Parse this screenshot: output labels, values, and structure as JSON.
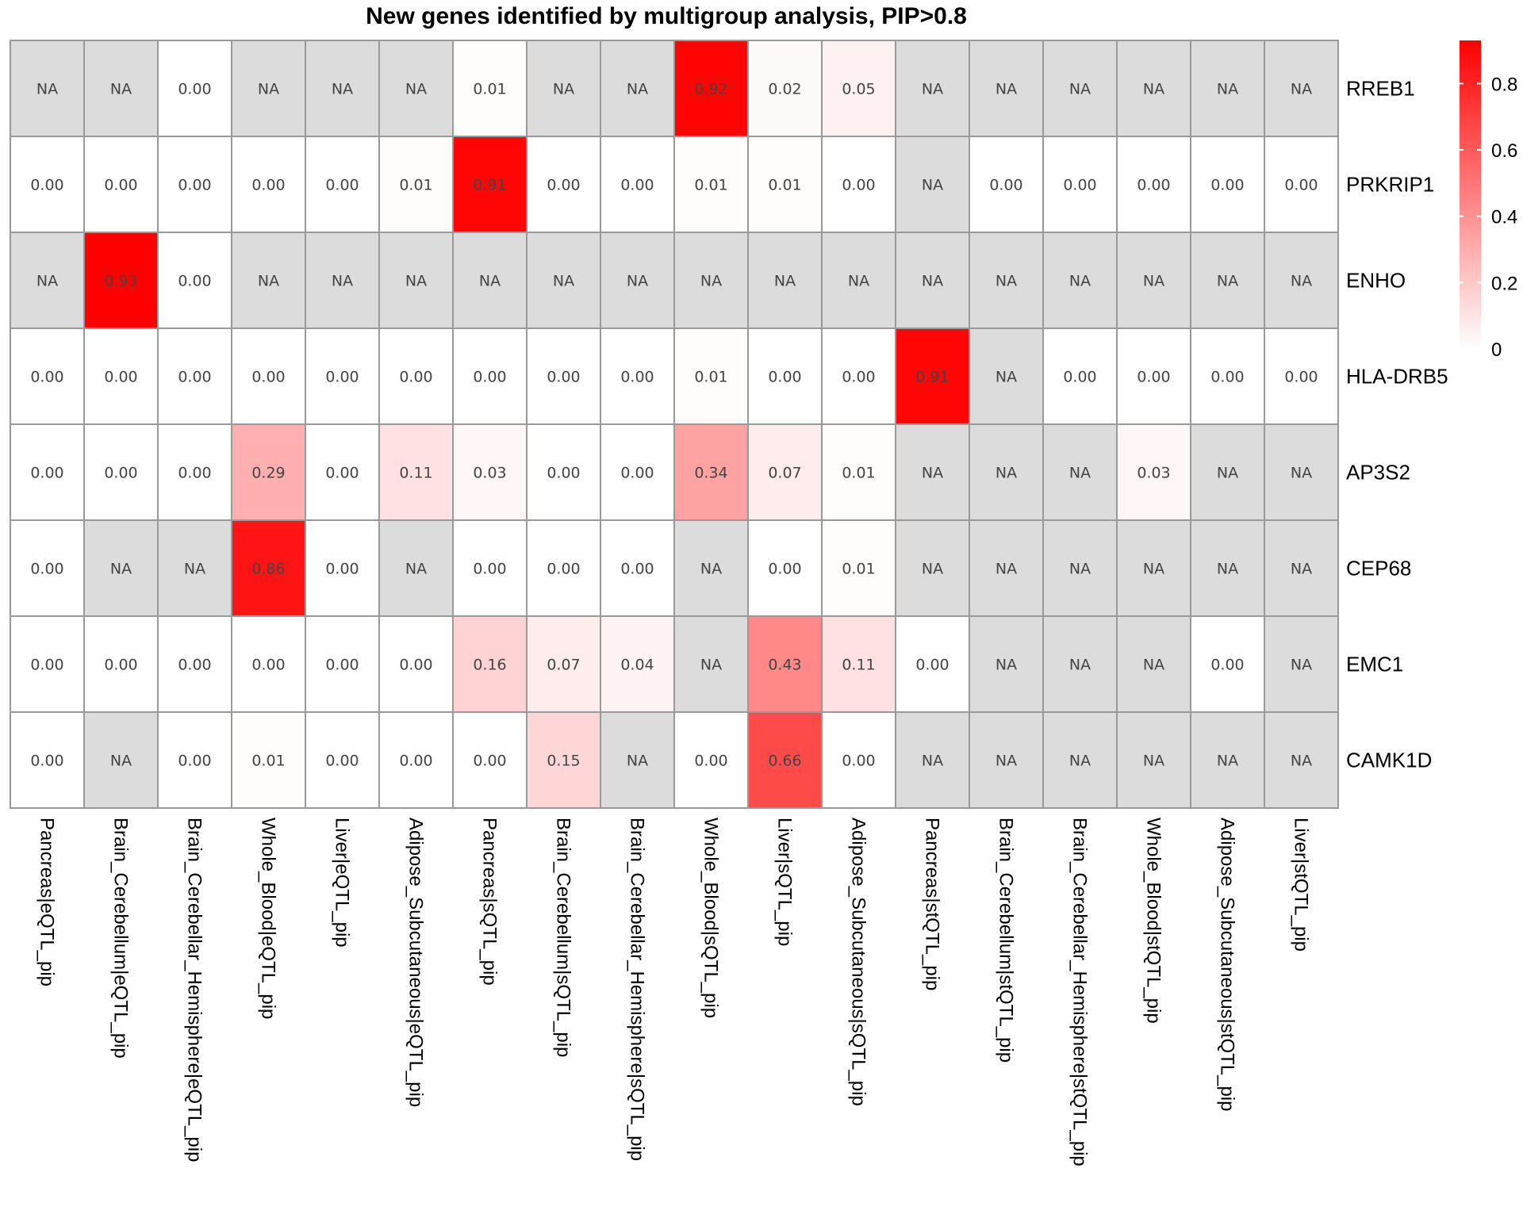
{
  "chart_data": {
    "type": "heatmap",
    "title": "New genes identified by multigroup analysis, PIP>0.8",
    "rows": [
      "RREB1",
      "PRKRIP1",
      "ENHO",
      "HLA-DRB5",
      "AP3S2",
      "CEP68",
      "EMC1",
      "CAMK1D"
    ],
    "columns": [
      "Pancreas|eQTL_pip",
      "Brain_Cerebellum|eQTL_pip",
      "Brain_Cerebellar_Hemisphere|eQTL_pip",
      "Whole_Blood|eQTL_pip",
      "Liver|eQTL_pip",
      "Adipose_Subcutaneous|eQTL_pip",
      "Pancreas|sQTL_pip",
      "Brain_Cerebellum|sQTL_pip",
      "Brain_Cerebellar_Hemisphere|sQTL_pip",
      "Whole_Blood|sQTL_pip",
      "Liver|sQTL_pip",
      "Adipose_Subcutaneous|sQTL_pip",
      "Pancreas|stQTL_pip",
      "Brain_Cerebellum|stQTL_pip",
      "Brain_Cerebellar_Hemisphere|stQTL_pip",
      "Whole_Blood|stQTL_pip",
      "Adipose_Subcutaneous|stQTL_pip",
      "Liver|stQTL_pip"
    ],
    "values": [
      [
        null,
        null,
        0.0,
        null,
        null,
        null,
        0.01,
        null,
        null,
        0.92,
        0.02,
        0.05,
        null,
        null,
        null,
        null,
        null,
        null
      ],
      [
        0.0,
        0.0,
        0.0,
        0.0,
        0.0,
        0.01,
        0.91,
        0.0,
        0.0,
        0.01,
        0.01,
        0.0,
        null,
        0.0,
        0.0,
        0.0,
        0.0,
        0.0
      ],
      [
        null,
        0.93,
        0.0,
        null,
        null,
        null,
        null,
        null,
        null,
        null,
        null,
        null,
        null,
        null,
        null,
        null,
        null,
        null
      ],
      [
        0.0,
        0.0,
        0.0,
        0.0,
        0.0,
        0.0,
        0.0,
        0.0,
        0.0,
        0.01,
        0.0,
        0.0,
        0.91,
        null,
        0.0,
        0.0,
        0.0,
        0.0
      ],
      [
        0.0,
        0.0,
        0.0,
        0.29,
        0.0,
        0.11,
        0.03,
        0.0,
        0.0,
        0.34,
        0.07,
        0.01,
        null,
        null,
        null,
        0.03,
        null,
        null
      ],
      [
        0.0,
        null,
        null,
        0.86,
        0.0,
        null,
        0.0,
        0.0,
        0.0,
        null,
        0.0,
        0.01,
        null,
        null,
        null,
        null,
        null,
        null
      ],
      [
        0.0,
        0.0,
        0.0,
        0.0,
        0.0,
        0.0,
        0.16,
        0.07,
        0.04,
        null,
        0.43,
        0.11,
        0.0,
        null,
        null,
        null,
        0.0,
        null
      ],
      [
        0.0,
        null,
        0.0,
        0.01,
        0.0,
        0.0,
        0.0,
        0.15,
        null,
        0.0,
        0.66,
        0.0,
        null,
        null,
        null,
        null,
        null,
        null
      ]
    ],
    "na_label": "NA",
    "color_low": "#ffffff",
    "color_high": "#ff0000",
    "na_color": "#dcdcdc",
    "grid_color": "#999999",
    "value_range": [
      0,
      0.93
    ],
    "legend": {
      "position": "right",
      "ticks": [
        0,
        0.2,
        0.4,
        0.6,
        0.8
      ],
      "tick_labels": [
        "0",
        "0.2",
        "0.4",
        "0.6",
        "0.8"
      ]
    },
    "grid": true
  }
}
